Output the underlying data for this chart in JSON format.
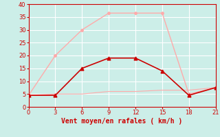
{
  "xlabel": "Vent moyen/en rafales ( km/h )",
  "x_ticks": [
    0,
    3,
    6,
    9,
    12,
    15,
    18,
    21
  ],
  "ylim": [
    0,
    40
  ],
  "yticks": [
    0,
    5,
    10,
    15,
    20,
    25,
    30,
    35,
    40
  ],
  "line1_x": [
    0,
    3,
    6,
    9,
    12,
    15,
    18,
    21
  ],
  "line1_y": [
    4.5,
    5.0,
    5.0,
    6.0,
    6.0,
    6.5,
    6.5,
    7.5
  ],
  "line1_color": "#ffaaaa",
  "line2_x": [
    0,
    3,
    6,
    9,
    12,
    15,
    18,
    21
  ],
  "line2_y": [
    4.5,
    20.0,
    30.0,
    36.5,
    36.5,
    36.5,
    5.0,
    7.5
  ],
  "line2_color": "#ffaaaa",
  "line3_x": [
    0,
    3,
    6,
    9,
    12,
    15,
    18,
    21
  ],
  "line3_y": [
    4.5,
    4.5,
    15.0,
    19.0,
    19.0,
    14.0,
    4.5,
    7.5
  ],
  "line3_color": "#cc0000",
  "bg_color": "#cceee8",
  "grid_color": "#ffffff",
  "tick_color": "#cc0000",
  "label_color": "#cc0000",
  "axis_color": "#cc0000",
  "figsize": [
    3.2,
    2.0
  ],
  "dpi": 100
}
